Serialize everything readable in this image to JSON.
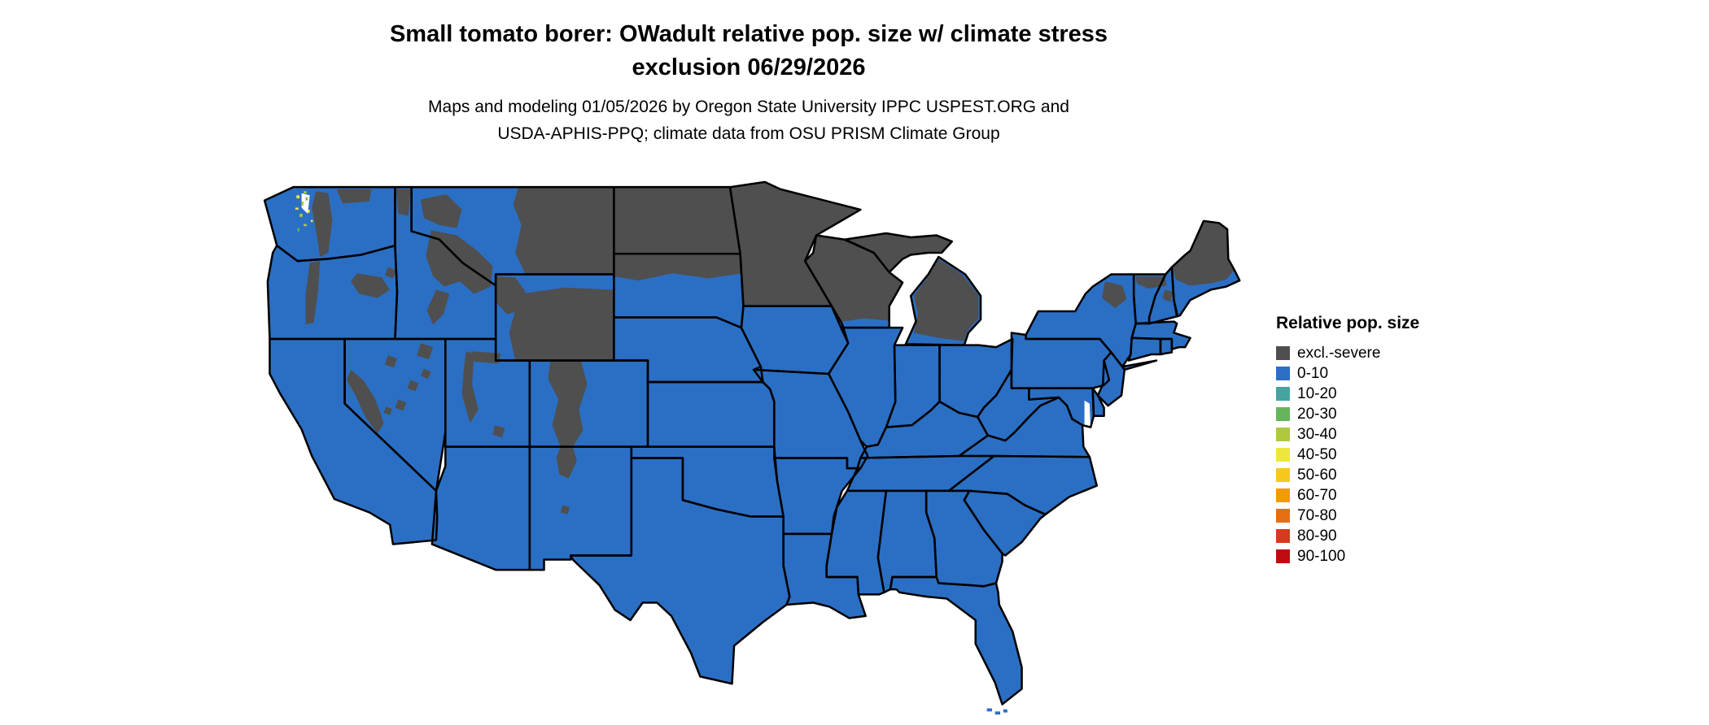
{
  "header": {
    "title_line1": "Small tomato borer: OWadult relative pop. size w/ climate stress",
    "title_line2": "exclusion 06/29/2026",
    "subtitle_line1": "Maps and modeling 01/05/2026 by Oregon State University IPPC USPEST.ORG and",
    "subtitle_line2": "USDA-APHIS-PPQ; climate data from OSU PRISM Climate Group"
  },
  "legend": {
    "title": "Relative pop. size",
    "items": [
      {
        "label": "excl.-severe",
        "color": "#4f4f4f"
      },
      {
        "label": "0-10",
        "color": "#2b6fc4"
      },
      {
        "label": "10-20",
        "color": "#46a3a0"
      },
      {
        "label": "20-30",
        "color": "#66b45c"
      },
      {
        "label": "30-40",
        "color": "#aec93f"
      },
      {
        "label": "40-50",
        "color": "#eee73b"
      },
      {
        "label": "50-60",
        "color": "#f6c81c"
      },
      {
        "label": "60-70",
        "color": "#f29b00"
      },
      {
        "label": "70-80",
        "color": "#e56d13"
      },
      {
        "label": "80-90",
        "color": "#d73a20"
      },
      {
        "label": "90-100",
        "color": "#c00a12"
      }
    ]
  },
  "map": {
    "region": "Contiguous United States",
    "fill_base": "#2b6fc4",
    "fill_excluded": "#4f4f4f",
    "border_color": "#000000",
    "background": "#ffffff"
  }
}
